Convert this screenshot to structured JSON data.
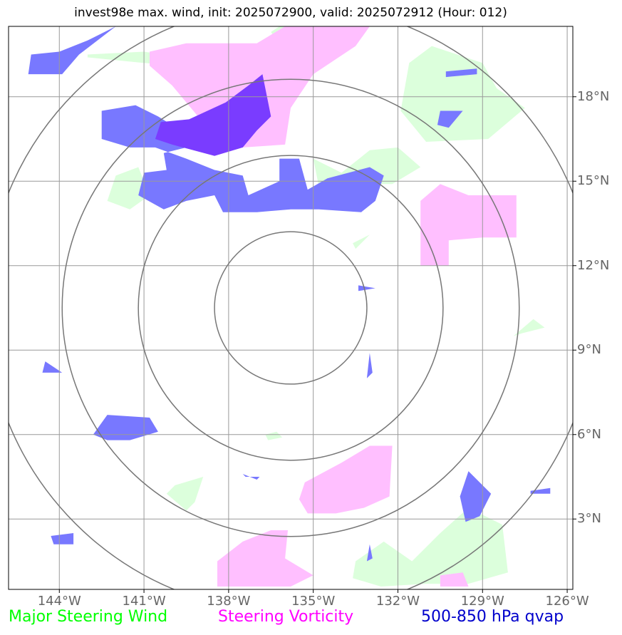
{
  "title": "invest98e max. wind, init: 2025072900, valid: 2025072912 (Hour: 012)",
  "map": {
    "lat_range": [
      0.5,
      20.5
    ],
    "lon_range": [
      -145.8,
      -125.8
    ],
    "lat_ticks": [
      3,
      6,
      9,
      12,
      15,
      18
    ],
    "lon_ticks": [
      -144,
      -141,
      -138,
      -135,
      -132,
      -129,
      -126
    ],
    "lat_labels": [
      "3°N",
      "6°N",
      "9°N",
      "12°N",
      "15°N",
      "18°N"
    ],
    "lon_labels": [
      "144°W",
      "141°W",
      "138°W",
      "135°W",
      "132°W",
      "129°W",
      "126°W"
    ],
    "center": {
      "lat": 10.5,
      "lon": -135.8
    },
    "range_rings_deg": [
      2.7,
      5.4,
      8.1,
      10.8
    ]
  },
  "legend": {
    "wind": {
      "label": "Major Steering Wind",
      "color": "#00ff00"
    },
    "vorticity": {
      "label": "Steering Vorticity",
      "color": "#ff00ff"
    },
    "qvap": {
      "label": "500-850 hPa qvap",
      "color": "#0000cc"
    }
  },
  "colors": {
    "wind_fill": "#dcffdc",
    "vort_fill": "#ffbfff",
    "qvap_fill": "#7878ff",
    "overlap_fill": "#7a3cff",
    "grid": "#999999",
    "rings": "#777777"
  },
  "fields": {
    "wind": [
      [
        [
          -143,
          19.5
        ],
        [
          -141,
          19.6
        ],
        [
          -139,
          19.3
        ],
        [
          -138,
          19.6
        ],
        [
          -139.5,
          19.1
        ],
        [
          -141,
          19.2
        ],
        [
          -143,
          19.4
        ]
      ],
      [
        [
          -136.5,
          20.3
        ],
        [
          -136,
          19.6
        ],
        [
          -135,
          20.5
        ],
        [
          -136.2,
          20.5
        ]
      ],
      [
        [
          -142,
          15.2
        ],
        [
          -141.2,
          15.5
        ],
        [
          -140.8,
          14.5
        ],
        [
          -141.5,
          14.0
        ],
        [
          -142.3,
          14.3
        ]
      ],
      [
        [
          -135,
          15.8
        ],
        [
          -134,
          15.3
        ],
        [
          -133,
          16.1
        ],
        [
          -132,
          16.2
        ],
        [
          -131.2,
          15.5
        ],
        [
          -132.2,
          14.9
        ],
        [
          -133.5,
          14.9
        ],
        [
          -134.8,
          14.8
        ]
      ],
      [
        [
          -131.6,
          19.2
        ],
        [
          -130.8,
          19.8
        ],
        [
          -129,
          19.2
        ],
        [
          -128.5,
          18.3
        ],
        [
          -127.5,
          17.6
        ],
        [
          -128.8,
          16.5
        ],
        [
          -131,
          16.4
        ],
        [
          -131.9,
          17.5
        ]
      ],
      [
        [
          -129,
          13.6
        ],
        [
          -128.5,
          14.0
        ],
        [
          -128.8,
          13.3
        ]
      ],
      [
        [
          -133.6,
          12.8
        ],
        [
          -133,
          13.1
        ],
        [
          -133.5,
          12.6
        ]
      ],
      [
        [
          -127.9,
          9.5
        ],
        [
          -127.2,
          10.1
        ],
        [
          -126.8,
          9.8
        ],
        [
          -127.6,
          9.6
        ]
      ],
      [
        [
          -139.9,
          4.2
        ],
        [
          -138.9,
          4.5
        ],
        [
          -139.2,
          3.6
        ],
        [
          -139.5,
          3.3
        ],
        [
          -140.2,
          3.9
        ]
      ],
      [
        [
          -136.7,
          6.0
        ],
        [
          -136.3,
          6.1
        ],
        [
          -136.1,
          5.9
        ],
        [
          -136.6,
          5.8
        ]
      ],
      [
        [
          -133.5,
          1.5
        ],
        [
          -132.5,
          2.2
        ],
        [
          -131.5,
          1.5
        ],
        [
          -130.5,
          2.5
        ],
        [
          -129.5,
          3.4
        ],
        [
          -128.3,
          2.8
        ],
        [
          -128.1,
          1.1
        ],
        [
          -129.5,
          0.7
        ],
        [
          -131,
          0.7
        ],
        [
          -132.6,
          0.6
        ],
        [
          -133.6,
          0.9
        ]
      ]
    ],
    "vorticity": [
      [
        [
          -140.8,
          19.6
        ],
        [
          -139.5,
          19.9
        ],
        [
          -137,
          19.9
        ],
        [
          -136,
          20.5
        ],
        [
          -133,
          20.5
        ],
        [
          -133.5,
          19.8
        ],
        [
          -135,
          18.8
        ],
        [
          -135.8,
          17.6
        ],
        [
          -136,
          16.3
        ],
        [
          -137.5,
          16.2
        ],
        [
          -139,
          17.2
        ],
        [
          -140,
          18.4
        ],
        [
          -140.8,
          19.1
        ]
      ],
      [
        [
          -131.2,
          14.3
        ],
        [
          -130.5,
          14.9
        ],
        [
          -129.5,
          14.5
        ],
        [
          -127.8,
          14.5
        ],
        [
          -127.8,
          13.0
        ],
        [
          -129,
          13.0
        ],
        [
          -130.2,
          12.9
        ],
        [
          -130.2,
          12.0
        ],
        [
          -131.2,
          12.0
        ]
      ],
      [
        [
          -135.3,
          4.3
        ],
        [
          -134,
          5.0
        ],
        [
          -133,
          5.6
        ],
        [
          -132.2,
          5.6
        ],
        [
          -132.3,
          3.8
        ],
        [
          -133.2,
          3.4
        ],
        [
          -134.2,
          3.2
        ],
        [
          -135.2,
          3.2
        ],
        [
          -135.5,
          3.7
        ]
      ],
      [
        [
          -138.4,
          1.5
        ],
        [
          -137.5,
          2.2
        ],
        [
          -136.5,
          2.6
        ],
        [
          -135.9,
          2.6
        ],
        [
          -136,
          1.6
        ],
        [
          -135,
          1.0
        ],
        [
          -135.8,
          0.6
        ],
        [
          -138.4,
          0.6
        ]
      ],
      [
        [
          -130.5,
          1.0
        ],
        [
          -129.7,
          1.1
        ],
        [
          -129.5,
          0.6
        ],
        [
          -130.5,
          0.6
        ]
      ]
    ],
    "qvap": [
      [
        [
          -145,
          19.5
        ],
        [
          -144,
          19.6
        ],
        [
          -143,
          20.0
        ],
        [
          -142,
          20.5
        ],
        [
          -143.3,
          19.5
        ],
        [
          -143.9,
          18.8
        ],
        [
          -145.1,
          18.8
        ]
      ],
      [
        [
          -130.3,
          18.9
        ],
        [
          -129.2,
          19.0
        ],
        [
          -129.2,
          18.8
        ],
        [
          -130.3,
          18.7
        ]
      ],
      [
        [
          -130.5,
          17.5
        ],
        [
          -129.7,
          17.5
        ],
        [
          -130.2,
          16.9
        ],
        [
          -130.6,
          17.0
        ]
      ],
      [
        [
          -142.5,
          17.5
        ],
        [
          -141.3,
          17.7
        ],
        [
          -140.5,
          17.3
        ],
        [
          -139.7,
          16.8
        ],
        [
          -138.2,
          17.4
        ],
        [
          -138,
          17.5
        ],
        [
          -138.2,
          16.8
        ],
        [
          -138.5,
          16.2
        ],
        [
          -139.5,
          16.2
        ],
        [
          -140.3,
          16.0
        ],
        [
          -140.2,
          15.4
        ],
        [
          -141,
          15.3
        ],
        [
          -141.2,
          14.5
        ],
        [
          -140.3,
          14.0
        ],
        [
          -139.5,
          14.3
        ],
        [
          -138.5,
          14.5
        ],
        [
          -138.2,
          13.9
        ],
        [
          -137,
          13.9
        ],
        [
          -135.8,
          14.0
        ],
        [
          -134.8,
          14.0
        ],
        [
          -133.3,
          13.9
        ],
        [
          -132.8,
          14.3
        ],
        [
          -132.5,
          15.2
        ],
        [
          -133,
          15.5
        ],
        [
          -134.5,
          15.1
        ],
        [
          -135.2,
          14.7
        ],
        [
          -135.5,
          15.8
        ],
        [
          -136.2,
          15.8
        ],
        [
          -136.2,
          15.0
        ],
        [
          -137.3,
          14.5
        ],
        [
          -137.5,
          15.2
        ],
        [
          -138.5,
          15.4
        ],
        [
          -139.5,
          15.8
        ],
        [
          -140.6,
          16.2
        ],
        [
          -141.5,
          16.2
        ],
        [
          -142.5,
          16.5
        ]
      ],
      [
        [
          -144.5,
          8.6
        ],
        [
          -143.9,
          8.2
        ],
        [
          -144.6,
          8.2
        ]
      ],
      [
        [
          -142.3,
          6.7
        ],
        [
          -140.8,
          6.6
        ],
        [
          -140.5,
          6.1
        ],
        [
          -141.5,
          5.8
        ],
        [
          -142.3,
          5.8
        ],
        [
          -142.8,
          6.0
        ]
      ],
      [
        [
          -133.4,
          11.3
        ],
        [
          -132.8,
          11.2
        ],
        [
          -133.4,
          11.1
        ]
      ],
      [
        [
          -133.0,
          8.9
        ],
        [
          -132.9,
          8.2
        ],
        [
          -133.1,
          8.0
        ]
      ],
      [
        [
          -137.5,
          4.6
        ],
        [
          -137.0,
          4.4
        ],
        [
          -136.9,
          4.5
        ],
        [
          -137.4,
          4.5
        ]
      ],
      [
        [
          -139.2,
          4.1
        ],
        [
          -139.0,
          4.0
        ]
      ],
      [
        [
          -129.5,
          4.7
        ],
        [
          -128.7,
          3.9
        ],
        [
          -129.1,
          3.1
        ],
        [
          -129.6,
          2.9
        ],
        [
          -129.8,
          3.8
        ]
      ],
      [
        [
          -127.3,
          4.0
        ],
        [
          -126.6,
          4.1
        ],
        [
          -126.6,
          3.9
        ],
        [
          -127.3,
          3.9
        ]
      ],
      [
        [
          -144.3,
          2.4
        ],
        [
          -143.5,
          2.5
        ],
        [
          -143.5,
          2.1
        ],
        [
          -144.2,
          2.1
        ]
      ],
      [
        [
          -133.0,
          2.1
        ],
        [
          -132.9,
          1.6
        ],
        [
          -133.1,
          1.5
        ]
      ]
    ],
    "overlap": [
      [
        [
          -140.4,
          17.1
        ],
        [
          -139.4,
          17.2
        ],
        [
          -138.1,
          17.8
        ],
        [
          -137.3,
          18.4
        ],
        [
          -136.8,
          18.8
        ],
        [
          -136.5,
          17.3
        ],
        [
          -137,
          16.8
        ],
        [
          -137.5,
          16.2
        ],
        [
          -138.5,
          15.9
        ],
        [
          -140,
          16.3
        ],
        [
          -140.6,
          16.5
        ]
      ]
    ]
  }
}
